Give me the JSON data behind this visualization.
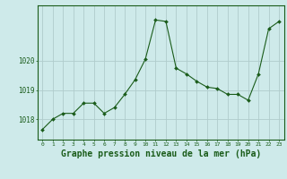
{
  "x": [
    0,
    1,
    2,
    3,
    4,
    5,
    6,
    7,
    8,
    9,
    10,
    11,
    12,
    13,
    14,
    15,
    16,
    17,
    18,
    19,
    20,
    21,
    22,
    23
  ],
  "y": [
    1017.65,
    1018.0,
    1018.2,
    1018.2,
    1018.55,
    1018.55,
    1018.2,
    1018.4,
    1018.85,
    1019.35,
    1020.05,
    1021.4,
    1021.35,
    1019.75,
    1019.55,
    1019.3,
    1019.1,
    1019.05,
    1018.85,
    1018.85,
    1018.65,
    1019.55,
    1021.1,
    1021.35
  ],
  "line_color": "#1a5c1a",
  "marker": "D",
  "marker_size": 2.0,
  "bg_color": "#ceeaea",
  "grid_color": "#b0cccc",
  "xlabel": "Graphe pression niveau de la mer (hPa)",
  "xlabel_fontsize": 7.0,
  "yticks": [
    1018,
    1019,
    1020
  ],
  "ylim": [
    1017.3,
    1021.9
  ],
  "xlim": [
    -0.5,
    23.5
  ],
  "figsize": [
    3.2,
    2.0
  ],
  "dpi": 100
}
